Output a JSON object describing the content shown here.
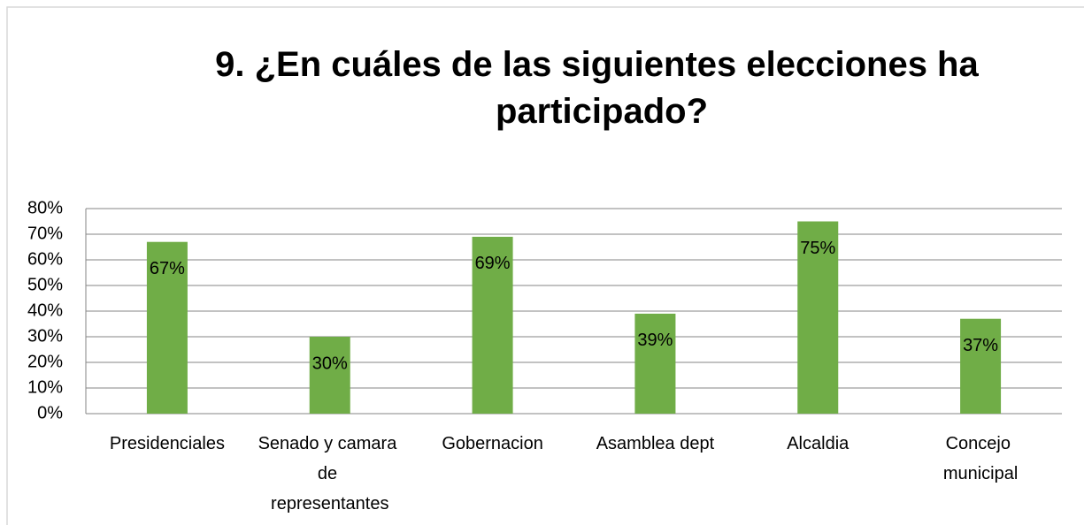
{
  "chart_data": {
    "type": "bar",
    "title": "9. ¿En cuáles de las siguientes elecciones ha participado?",
    "categories": [
      "Presidenciales",
      "Senado y camara de representantes",
      "Gobernacion",
      "Asamblea dept",
      "Alcaldia",
      "Concejo municipal"
    ],
    "values": [
      67,
      30,
      69,
      39,
      75,
      37
    ],
    "value_labels": [
      "67%",
      "30%",
      "69%",
      "39%",
      "75%",
      "37%"
    ],
    "color": "#70ad47",
    "ylim": [
      0,
      80
    ],
    "yticks": [
      {
        "value": 0,
        "label": "0%"
      },
      {
        "value": 10,
        "label": "10%"
      },
      {
        "value": 20,
        "label": "20%"
      },
      {
        "value": 30,
        "label": "30%"
      },
      {
        "value": 40,
        "label": "40%"
      },
      {
        "value": 50,
        "label": "50%"
      },
      {
        "value": 60,
        "label": "60%"
      },
      {
        "value": 70,
        "label": "70%"
      },
      {
        "value": 80,
        "label": "80%"
      }
    ],
    "grid": true
  }
}
